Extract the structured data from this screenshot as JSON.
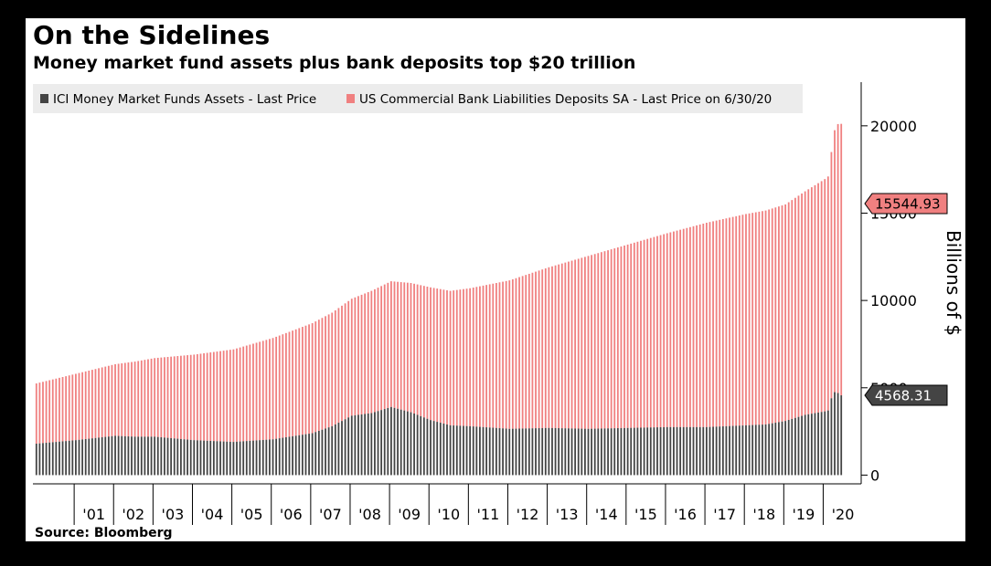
{
  "title": "On the Sidelines",
  "subtitle": "Money market fund assets plus bank deposits top $20 trillion",
  "source": "Source: Bloomberg",
  "colors": {
    "deposits": "#f08080",
    "mmf": "#444444",
    "background": "#ffffff",
    "frame": "#000000"
  },
  "chart_data": {
    "type": "bar",
    "stacked": true,
    "frequency": "monthly",
    "x_start": "2000-01",
    "x_end": "2020-06",
    "x_tick_labels": [
      "'01",
      "'02",
      "'03",
      "'04",
      "'05",
      "'06",
      "'07",
      "'08",
      "'09",
      "'10",
      "'11",
      "'12",
      "'13",
      "'14",
      "'15",
      "'16",
      "'17",
      "'18",
      "'19",
      "'20"
    ],
    "y_ticks": [
      0,
      5000,
      10000,
      15000,
      20000
    ],
    "y_tick_labels": [
      "0",
      "5000",
      "10000",
      "15000",
      "20000"
    ],
    "ylim": [
      -500,
      22500
    ],
    "ylabel": "Billions of $",
    "series": [
      {
        "name": "ICI Money Market Funds Assets - Last Price",
        "color": "#444444",
        "last_value": 4568.31,
        "last_label": "4568.31",
        "anchors": [
          [
            "2000-01",
            1800
          ],
          [
            "2001-01",
            2000
          ],
          [
            "2002-01",
            2250
          ],
          [
            "2002-07",
            2200
          ],
          [
            "2003-01",
            2200
          ],
          [
            "2004-01",
            2000
          ],
          [
            "2005-01",
            1900
          ],
          [
            "2006-01",
            2050
          ],
          [
            "2007-01",
            2400
          ],
          [
            "2007-07",
            2800
          ],
          [
            "2008-01",
            3400
          ],
          [
            "2008-07",
            3550
          ],
          [
            "2009-01",
            3900
          ],
          [
            "2009-07",
            3600
          ],
          [
            "2010-01",
            3150
          ],
          [
            "2010-07",
            2850
          ],
          [
            "2011-01",
            2800
          ],
          [
            "2012-01",
            2650
          ],
          [
            "2013-01",
            2700
          ],
          [
            "2014-01",
            2650
          ],
          [
            "2015-01",
            2700
          ],
          [
            "2016-01",
            2750
          ],
          [
            "2017-01",
            2750
          ],
          [
            "2018-01",
            2850
          ],
          [
            "2018-07",
            2900
          ],
          [
            "2019-01",
            3100
          ],
          [
            "2019-07",
            3450
          ],
          [
            "2020-01",
            3650
          ],
          [
            "2020-02",
            3700
          ],
          [
            "2020-03",
            4400
          ],
          [
            "2020-04",
            4750
          ],
          [
            "2020-05",
            4700
          ],
          [
            "2020-06",
            4568.31
          ]
        ]
      },
      {
        "name": "US Commercial Bank Liabilities Deposits SA - Last Price on 6/30/20",
        "color": "#f08080",
        "last_value": 15544.93,
        "last_label": "15544.93",
        "anchors": [
          [
            "2000-01",
            3450
          ],
          [
            "2001-01",
            3800
          ],
          [
            "2002-01",
            4100
          ],
          [
            "2003-01",
            4500
          ],
          [
            "2004-01",
            4900
          ],
          [
            "2005-01",
            5300
          ],
          [
            "2006-01",
            5800
          ],
          [
            "2007-01",
            6300
          ],
          [
            "2007-07",
            6500
          ],
          [
            "2008-01",
            6700
          ],
          [
            "2008-07",
            7000
          ],
          [
            "2009-01",
            7200
          ],
          [
            "2009-07",
            7400
          ],
          [
            "2010-01",
            7600
          ],
          [
            "2010-07",
            7700
          ],
          [
            "2011-01",
            7900
          ],
          [
            "2012-01",
            8500
          ],
          [
            "2013-01",
            9200
          ],
          [
            "2014-01",
            9900
          ],
          [
            "2015-01",
            10500
          ],
          [
            "2016-01",
            11100
          ],
          [
            "2017-01",
            11700
          ],
          [
            "2018-01",
            12100
          ],
          [
            "2019-01",
            12400
          ],
          [
            "2019-07",
            12800
          ],
          [
            "2020-01",
            13300
          ],
          [
            "2020-02",
            13400
          ],
          [
            "2020-03",
            14100
          ],
          [
            "2020-04",
            15000
          ],
          [
            "2020-05",
            15400
          ],
          [
            "2020-06",
            15544.93
          ]
        ]
      }
    ]
  }
}
